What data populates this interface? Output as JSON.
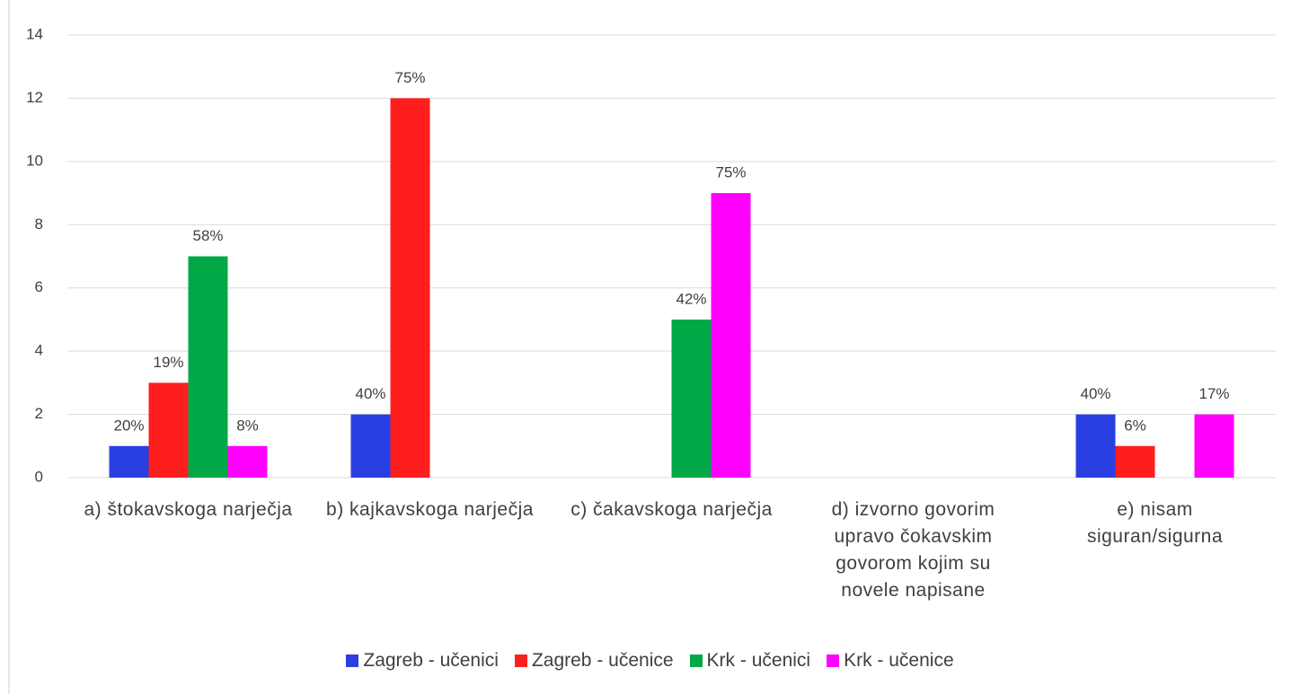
{
  "chart_data": {
    "type": "bar",
    "categories": [
      "a) štokavskoga narječja",
      "b) kajkavskoga narječja",
      "c) čakavskoga narječja",
      "d) izvorno govorim upravo čokavskim govorom kojim su novele napisane",
      "e) nisam siguran/sigurna"
    ],
    "series": [
      {
        "name": "Zagreb - učenici",
        "color": "#2a3fe2",
        "values": [
          1,
          2,
          null,
          null,
          2
        ],
        "value_labels": [
          "20%",
          "40%",
          null,
          null,
          "40%"
        ]
      },
      {
        "name": "Zagreb - učenice",
        "color": "#ff1e1e",
        "values": [
          3,
          12,
          null,
          null,
          1
        ],
        "value_labels": [
          "19%",
          "75%",
          null,
          null,
          "6%"
        ]
      },
      {
        "name": "Krk - učenici",
        "color": "#00a846",
        "values": [
          7,
          null,
          5,
          null,
          null
        ],
        "value_labels": [
          "58%",
          null,
          "42%",
          null,
          null
        ]
      },
      {
        "name": "Krk - učenice",
        "color": "#ff00ff",
        "values": [
          1,
          null,
          9,
          null,
          2
        ],
        "value_labels": [
          "8%",
          null,
          "75%",
          null,
          "17%"
        ]
      }
    ],
    "ylim": [
      0,
      14
    ],
    "yticks": [
      0,
      2,
      4,
      6,
      8,
      10,
      12,
      14
    ],
    "grid": true,
    "legend": "bottom"
  }
}
